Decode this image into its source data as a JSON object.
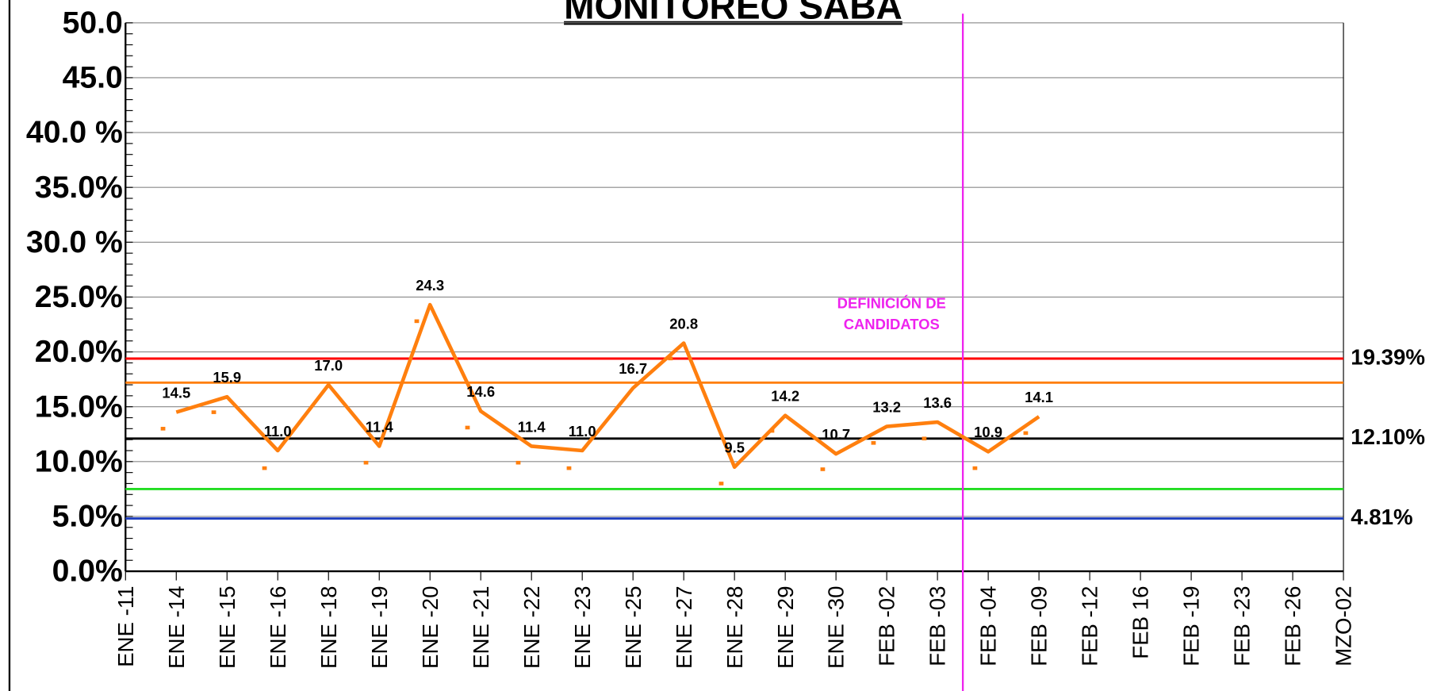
{
  "chart_data": {
    "type": "line",
    "title": "MONITOREO SABA",
    "categories": [
      "ENE -11",
      "ENE -14",
      "ENE -15",
      "ENE -16",
      "ENE -18",
      "ENE -19",
      "ENE -20",
      "ENE -21",
      "ENE -22",
      "ENE -23",
      "ENE -25",
      "ENE -27",
      "ENE -28",
      "ENE -29",
      "ENE -30",
      "FEB -02",
      "FEB -03",
      "FEB -04",
      "FEB -09",
      "FEB -12",
      "FEB 16",
      "FEB -19",
      "FEB -23",
      "FEB -26",
      "MZO-02"
    ],
    "series": [
      {
        "color": "#ff7f0e",
        "style": "line",
        "values": [
          null,
          14.5,
          15.9,
          11.0,
          17.0,
          11.4,
          24.3,
          14.6,
          11.4,
          11.0,
          16.7,
          20.8,
          9.5,
          14.2,
          10.7,
          13.2,
          13.6,
          10.9,
          14.1,
          null,
          null,
          null,
          null,
          null,
          null
        ],
        "value_labels": [
          null,
          "14.5",
          "15.9",
          "11.0",
          "17.0",
          "11.4",
          "24.3",
          "14.6",
          "11.4",
          "11.0",
          "16.7",
          "20.8",
          "9.5",
          "14.2",
          "10.7",
          "13.2",
          "13.6",
          "10.9",
          "14.1",
          null,
          null,
          null,
          null,
          null,
          null
        ]
      },
      {
        "color": "#ff7f0e",
        "style": "dots",
        "values": [
          null,
          13.0,
          14.5,
          9.4,
          null,
          9.9,
          22.8,
          13.1,
          9.9,
          9.4,
          null,
          19.4,
          8.0,
          12.8,
          9.3,
          11.7,
          12.1,
          9.4,
          12.6,
          null,
          null,
          null,
          null,
          null,
          null
        ]
      }
    ],
    "ylim": [
      0,
      50
    ],
    "yticks": [
      {
        "value": 0,
        "label": "0.0%"
      },
      {
        "value": 5,
        "label": "5.0%"
      },
      {
        "value": 10,
        "label": "10.0%"
      },
      {
        "value": 15,
        "label": "15.0%"
      },
      {
        "value": 20,
        "label": "20.0%"
      },
      {
        "value": 25,
        "label": "25.0%"
      },
      {
        "value": 30,
        "label": "30.0 %"
      },
      {
        "value": 35,
        "label": "35.0%"
      },
      {
        "value": 40,
        "label": "40.0 %"
      },
      {
        "value": 45,
        "label": "45.0"
      },
      {
        "value": 50,
        "label": "50.0"
      }
    ],
    "grid": true,
    "reference_lines": [
      {
        "value": 19.39,
        "label": "19.39%",
        "color": "#ff0000"
      },
      {
        "value": 17.2,
        "color": "#ff7f0e"
      },
      {
        "value": 12.1,
        "label": "12.10%",
        "color": "#000000"
      },
      {
        "value": 7.5,
        "color": "#22dd22"
      },
      {
        "value": 4.81,
        "label": "4.81%",
        "color": "#1f3fbf"
      }
    ],
    "vline": {
      "position": 16.5,
      "color": "#ee22ee",
      "label": [
        "DEFINICIÓN DE",
        "CANDIDATOS"
      ]
    }
  }
}
